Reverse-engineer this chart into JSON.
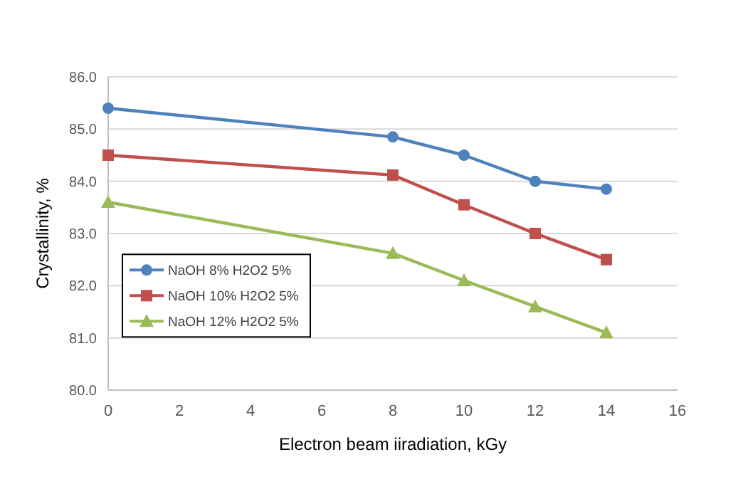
{
  "chart_data": {
    "type": "line",
    "xlabel": "Electron beam iiradiation, kGy",
    "ylabel": "Crystallinity, %",
    "x": [
      0,
      8,
      10,
      12,
      14
    ],
    "series": [
      {
        "name": "NaOH 8% H2O2 5%",
        "color": "#4f81bd",
        "marker": "circle",
        "values": [
          85.4,
          84.85,
          84.5,
          84.0,
          83.85
        ]
      },
      {
        "name": "NaOH 10% H2O2 5%",
        "color": "#c0504d",
        "marker": "square",
        "values": [
          84.5,
          84.12,
          83.55,
          83.0,
          82.5
        ]
      },
      {
        "name": "NaOH 12% H2O2 5%",
        "color": "#9bbb59",
        "marker": "triangle",
        "values": [
          83.6,
          82.62,
          82.1,
          81.6,
          81.1
        ]
      }
    ],
    "xlim": [
      0,
      16
    ],
    "xticks": [
      0,
      2,
      4,
      6,
      8,
      10,
      12,
      14,
      16
    ],
    "ylim": [
      80,
      86
    ],
    "yticks": [
      {
        "value": 80,
        "label": "80.0"
      },
      {
        "value": 81,
        "label": "81.0"
      },
      {
        "value": 82,
        "label": "82.0"
      },
      {
        "value": 83,
        "label": "83.0"
      },
      {
        "value": 84,
        "label": "84.0"
      },
      {
        "value": 85,
        "label": "85.0"
      },
      {
        "value": 86,
        "label": "86.0"
      }
    ],
    "grid": "y",
    "legend": "left"
  }
}
